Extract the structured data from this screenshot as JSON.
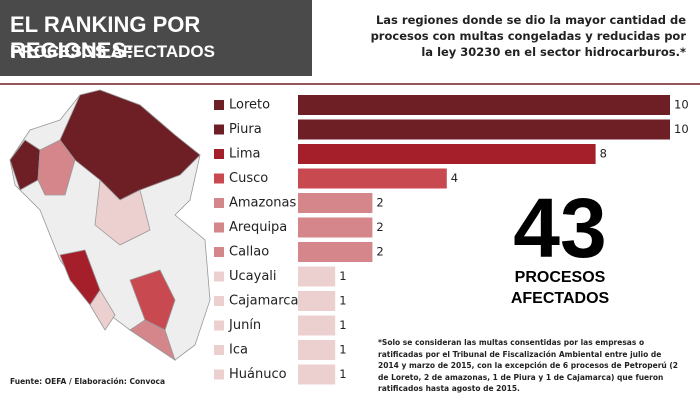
{
  "chart_data": {
    "type": "bar",
    "orientation": "horizontal",
    "title": [
      "EL RANKING POR REGIONES:",
      "PROCESOS AFECTADOS"
    ],
    "subtitle": "Las regiones donde se dio la mayor cantidad de procesos con multas congeladas y reducidas por la ley 30230 en el sector hidrocarburos.*",
    "categories": [
      "Loreto",
      "Piura",
      "Lima",
      "Cusco",
      "Amazonas",
      "Arequipa",
      "Callao",
      "Ucayali",
      "Cajamarca",
      "Junín",
      "Ica",
      "Huánuco"
    ],
    "values": [
      10,
      10,
      8,
      4,
      2,
      2,
      2,
      1,
      1,
      1,
      1,
      1
    ],
    "colors": [
      "#6e1f26",
      "#6e1f26",
      "#a51f2a",
      "#c84a50",
      "#d4868a",
      "#d4868a",
      "#d4868a",
      "#ecd0d0",
      "#ecd0d0",
      "#ecd0d0",
      "#ecd0d0",
      "#ecd0d0"
    ],
    "xlim": [
      0,
      10
    ],
    "total": "43",
    "total_label": [
      "PROCESOS",
      "AFECTADOS"
    ],
    "footnote": "*Solo se consideran las multas consentidas por las empresas o ratificadas por el Tribunal de Fiscalización Ambiental entre julio de 2014 y marzo de 2015, con la excepción de 6 procesos de Petroperú (2 de Loreto, 2 de amazonas, 1 de Piura y 1 de Cajamarca) que fueron ratificados hasta agosto de 2015.",
    "source": "Fuente: OEFA / Elaboración: Convoca"
  }
}
